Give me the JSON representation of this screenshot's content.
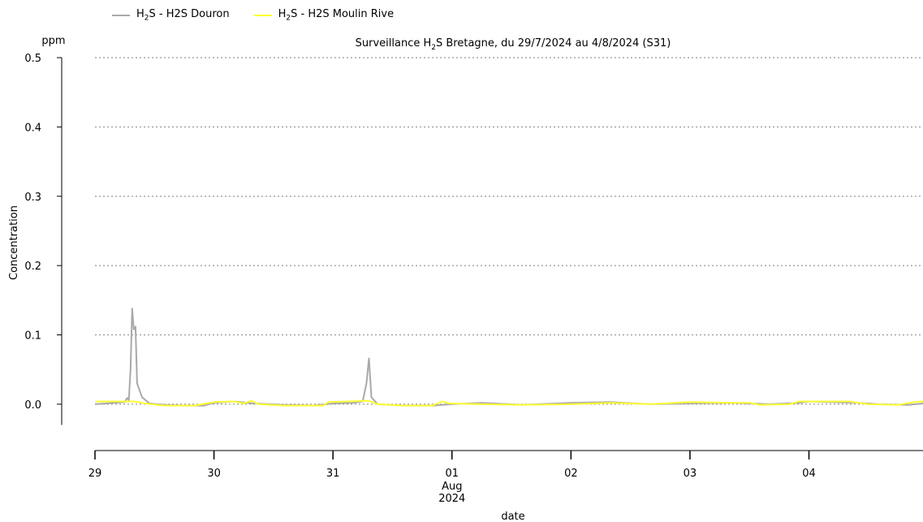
{
  "chart_data": {
    "type": "line",
    "title_parts": [
      "Surveillance H",
      "2",
      "S Bretagne, du 29/7/2024 au 4/8/2024 (S31)"
    ],
    "ylabel": "Concentration",
    "yunit": "ppm",
    "xlabel": "date",
    "ylim": [
      -0.03,
      0.5
    ],
    "yticks": [
      "0.0",
      "0.1",
      "0.2",
      "0.3",
      "0.4",
      "0.5"
    ],
    "xlim": [
      "2024-07-29",
      "2024-08-04T23:00"
    ],
    "xticks": [
      {
        "date": "2024-07-29",
        "label": "29"
      },
      {
        "date": "2024-07-30",
        "label": "30"
      },
      {
        "date": "2024-07-31",
        "label": "31"
      },
      {
        "date": "2024-08-01",
        "label": "01",
        "sub": [
          "Aug",
          "2024"
        ]
      },
      {
        "date": "2024-08-02",
        "label": "02"
      },
      {
        "date": "2024-08-03",
        "label": "03"
      },
      {
        "date": "2024-08-04",
        "label": "04"
      }
    ],
    "grid": "horizontal dotted",
    "legend": "top-left",
    "series": [
      {
        "name_parts": [
          "H",
          "2",
          "S - H2S Douron"
        ],
        "color": "#a9a9a9",
        "points": [
          [
            "2024-07-29T00:00",
            0.0
          ],
          [
            "2024-07-29T04:00",
            0.002
          ],
          [
            "2024-07-29T06:00",
            0.003
          ],
          [
            "2024-07-29T06:30",
            0.009
          ],
          [
            "2024-07-29T06:50",
            0.006
          ],
          [
            "2024-07-29T07:10",
            0.05
          ],
          [
            "2024-07-29T07:30",
            0.138
          ],
          [
            "2024-07-29T07:50",
            0.108
          ],
          [
            "2024-07-29T08:10",
            0.112
          ],
          [
            "2024-07-29T08:30",
            0.03
          ],
          [
            "2024-07-29T09:30",
            0.01
          ],
          [
            "2024-07-29T11:00",
            0.001
          ],
          [
            "2024-07-29T14:00",
            -0.001
          ],
          [
            "2024-07-29T18:00",
            -0.002
          ],
          [
            "2024-07-29T22:00",
            -0.002
          ],
          [
            "2024-07-30T00:00",
            0.002
          ],
          [
            "2024-07-30T04:00",
            0.004
          ],
          [
            "2024-07-30T08:00",
            0.001
          ],
          [
            "2024-07-30T14:00",
            -0.001
          ],
          [
            "2024-07-30T20:00",
            -0.002
          ],
          [
            "2024-07-31T00:00",
            0.001
          ],
          [
            "2024-07-31T04:00",
            0.002
          ],
          [
            "2024-07-31T06:00",
            0.004
          ],
          [
            "2024-07-31T06:45",
            0.03
          ],
          [
            "2024-07-31T07:15",
            0.066
          ],
          [
            "2024-07-31T07:45",
            0.01
          ],
          [
            "2024-07-31T09:00",
            0.0
          ],
          [
            "2024-07-31T14:00",
            -0.002
          ],
          [
            "2024-07-31T20:00",
            -0.002
          ],
          [
            "2024-08-01T00:00",
            0.0
          ],
          [
            "2024-08-01T06:00",
            0.002
          ],
          [
            "2024-08-01T14:00",
            -0.001
          ],
          [
            "2024-08-02T00:00",
            0.002
          ],
          [
            "2024-08-02T08:00",
            0.003
          ],
          [
            "2024-08-02T16:00",
            0.0
          ],
          [
            "2024-08-03T00:00",
            0.001
          ],
          [
            "2024-08-03T08:00",
            0.002
          ],
          [
            "2024-08-03T16:00",
            0.0
          ],
          [
            "2024-08-03T22:00",
            0.002
          ],
          [
            "2024-08-04T00:00",
            0.004
          ],
          [
            "2024-08-04T04:00",
            0.003
          ],
          [
            "2024-08-04T10:00",
            0.002
          ],
          [
            "2024-08-04T14:00",
            0.0
          ],
          [
            "2024-08-04T20:00",
            -0.001
          ],
          [
            "2024-08-04T23:00",
            0.001
          ]
        ]
      },
      {
        "name_parts": [
          "H",
          "2",
          "S - H2S Moulin Rive"
        ],
        "color": "#ffff33",
        "points": [
          [
            "2024-07-29T00:00",
            0.004
          ],
          [
            "2024-07-29T04:00",
            0.004
          ],
          [
            "2024-07-29T08:00",
            0.004
          ],
          [
            "2024-07-29T10:00",
            0.001
          ],
          [
            "2024-07-29T14:00",
            -0.002
          ],
          [
            "2024-07-29T20:00",
            -0.002
          ],
          [
            "2024-07-30T00:00",
            0.003
          ],
          [
            "2024-07-30T04:00",
            0.004
          ],
          [
            "2024-07-30T06:00",
            0.001
          ],
          [
            "2024-07-30T07:30",
            0.005
          ],
          [
            "2024-07-30T09:00",
            0.0
          ],
          [
            "2024-07-30T14:00",
            -0.002
          ],
          [
            "2024-07-30T20:00",
            -0.002
          ],
          [
            "2024-07-30T22:00",
            -0.002
          ],
          [
            "2024-07-30T23:00",
            0.003
          ],
          [
            "2024-07-31T03:00",
            0.004
          ],
          [
            "2024-07-31T07:00",
            0.005
          ],
          [
            "2024-07-31T09:00",
            0.0
          ],
          [
            "2024-07-31T14:00",
            -0.002
          ],
          [
            "2024-07-31T20:00",
            -0.002
          ],
          [
            "2024-07-31T22:00",
            0.004
          ],
          [
            "2024-07-31T23:30",
            0.001
          ],
          [
            "2024-08-01T06:00",
            0.0
          ],
          [
            "2024-08-01T14:00",
            -0.001
          ],
          [
            "2024-08-02T00:00",
            0.0
          ],
          [
            "2024-08-02T08:00",
            0.002
          ],
          [
            "2024-08-02T16:00",
            0.0
          ],
          [
            "2024-08-03T00:00",
            0.003
          ],
          [
            "2024-08-03T08:00",
            0.002
          ],
          [
            "2024-08-03T12:00",
            0.002
          ],
          [
            "2024-08-03T14:00",
            -0.001
          ],
          [
            "2024-08-03T20:00",
            0.0
          ],
          [
            "2024-08-03T22:00",
            0.004
          ],
          [
            "2024-08-04T04:00",
            0.004
          ],
          [
            "2024-08-04T08:00",
            0.004
          ],
          [
            "2024-08-04T12:00",
            0.0
          ],
          [
            "2024-08-04T18:00",
            -0.001
          ],
          [
            "2024-08-04T21:00",
            0.003
          ],
          [
            "2024-08-04T23:00",
            0.004
          ]
        ]
      }
    ]
  }
}
